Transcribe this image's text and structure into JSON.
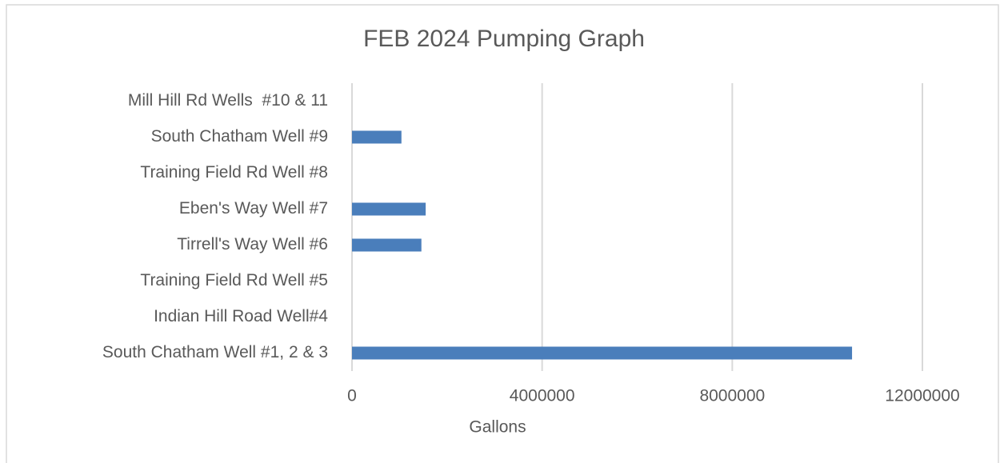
{
  "chart_data": {
    "type": "bar",
    "orientation": "horizontal",
    "title": "FEB 2024 Pumping Graph",
    "categories": [
      "Mill Hill Rd Wells  #10 & 11",
      "South Chatham Well #9",
      "Training Field Rd Well #8",
      "Eben's Way Well #7",
      "Tirrell's Way Well #6",
      "Training Field Rd Well #5",
      "Indian Hill Road Well#4",
      "South Chatham Well #1, 2 & 3"
    ],
    "values": [
      0,
      1040000,
      0,
      1550000,
      1460000,
      0,
      0,
      10520000
    ],
    "color": "#4a7ebb",
    "xlabel": "Gallons",
    "xlim": [
      0,
      12000000
    ],
    "xticks": [
      0,
      4000000,
      8000000,
      12000000
    ],
    "grid": true
  }
}
